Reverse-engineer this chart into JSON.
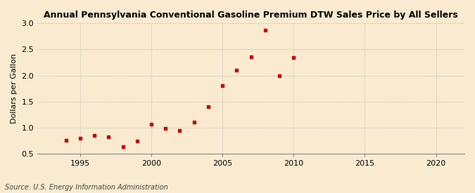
{
  "title": "Annual Pennsylvania Conventional Gasoline Premium DTW Sales Price by All Sellers",
  "ylabel": "Dollars per Gallon",
  "source": "Source: U.S. Energy Information Administration",
  "background_color": "#faebd0",
  "marker_color": "#cc0000",
  "years": [
    1994,
    1995,
    1996,
    1997,
    1998,
    1999,
    2000,
    2001,
    2002,
    2003,
    2004,
    2005,
    2006,
    2007,
    2008,
    2009,
    2010
  ],
  "values": [
    0.75,
    0.8,
    0.85,
    0.82,
    0.63,
    0.74,
    1.07,
    0.98,
    0.95,
    1.11,
    1.4,
    1.8,
    2.1,
    2.36,
    2.87,
    2.0,
    2.35
  ],
  "xlim": [
    1992,
    2022
  ],
  "ylim": [
    0.5,
    3.0
  ],
  "yticks": [
    0.5,
    1.0,
    1.5,
    2.0,
    2.5,
    3.0
  ],
  "xticks": [
    1995,
    2000,
    2005,
    2010,
    2015,
    2020
  ],
  "figsize": [
    6.75,
    2.75
  ],
  "dpi": 100
}
